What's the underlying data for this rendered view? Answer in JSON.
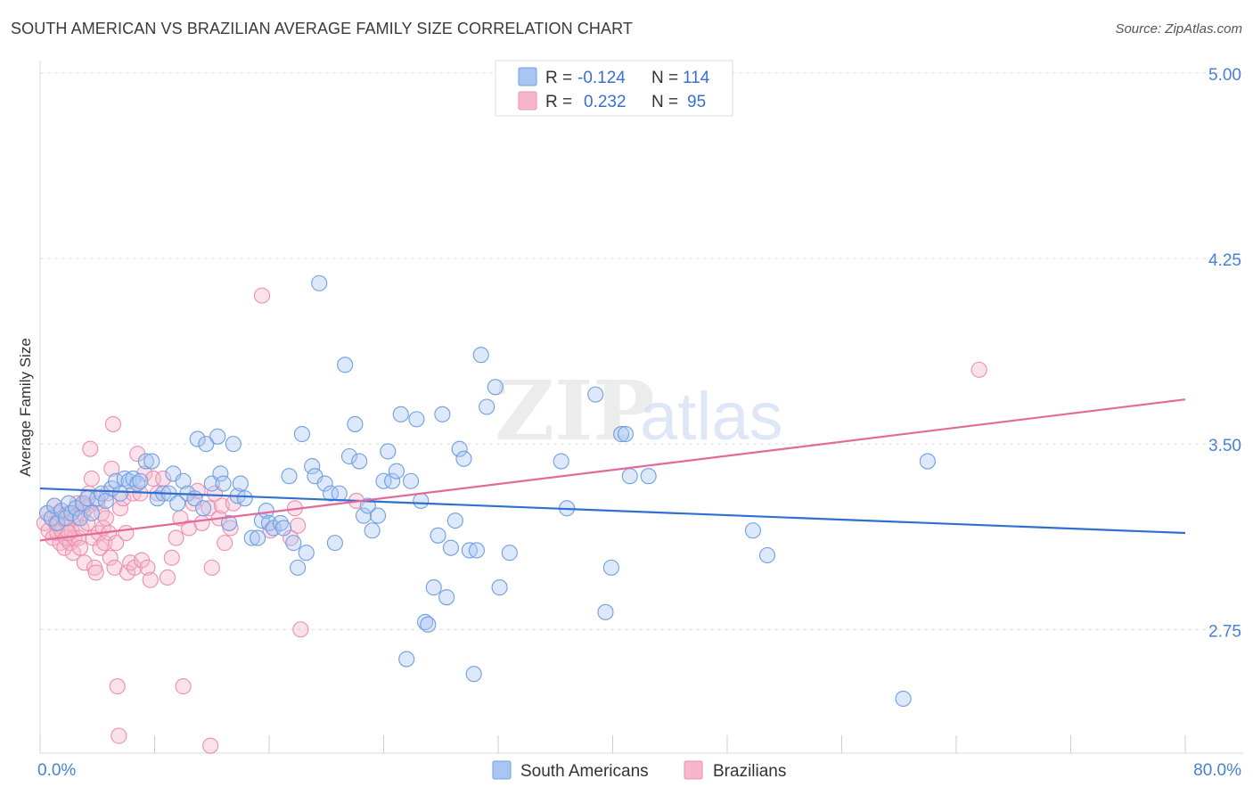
{
  "title": "SOUTH AMERICAN VS BRAZILIAN AVERAGE FAMILY SIZE CORRELATION CHART",
  "source": "Source: ZipAtlas.com",
  "watermark": {
    "zip": "ZIP",
    "atlas": "atlas"
  },
  "colors": {
    "blue_fill": "#a9c6f2",
    "blue_stroke": "#6f9fe0",
    "blue_line": "#2f6fd0",
    "pink_fill": "#f6b7cb",
    "pink_stroke": "#ec8fae",
    "pink_line": "#e36a97",
    "tick_text": "#4a7fd4",
    "grid": "#dddddd"
  },
  "legend_top": {
    "rows": [
      {
        "r_label": "R =",
        "r_value": "-0.124",
        "n_label": "N =",
        "n_value": "114"
      },
      {
        "r_label": "R =",
        "r_value": "0.232",
        "n_label": "N =",
        "n_value": "95"
      }
    ]
  },
  "chart_data": {
    "type": "scatter",
    "title": "SOUTH AMERICAN VS BRAZILIAN AVERAGE FAMILY SIZE CORRELATION CHART",
    "xlabel": "",
    "ylabel": "Average Family Size",
    "xlim": [
      0,
      80
    ],
    "ylim": [
      2.25,
      5.05
    ],
    "x_tick_labels": [
      "0.0%",
      "80.0%"
    ],
    "y_ticks": [
      2.75,
      3.5,
      4.25,
      5.0
    ],
    "y_tick_labels": [
      "2.75",
      "3.50",
      "4.25",
      "5.00"
    ],
    "grid": "horizontal dashed",
    "legend_placement": "bottom-center",
    "series": [
      {
        "name": "South Americans",
        "r": -0.124,
        "n": 114,
        "trend": [
          [
            0,
            3.32
          ],
          [
            80,
            3.14
          ]
        ],
        "points": [
          [
            0.5,
            3.22
          ],
          [
            0.8,
            3.2
          ],
          [
            1.0,
            3.25
          ],
          [
            1.2,
            3.18
          ],
          [
            1.5,
            3.23
          ],
          [
            1.8,
            3.2
          ],
          [
            2.0,
            3.26
          ],
          [
            2.2,
            3.22
          ],
          [
            2.5,
            3.24
          ],
          [
            2.8,
            3.2
          ],
          [
            3.0,
            3.26
          ],
          [
            3.3,
            3.28
          ],
          [
            3.6,
            3.22
          ],
          [
            4.0,
            3.28
          ],
          [
            4.3,
            3.3
          ],
          [
            4.6,
            3.27
          ],
          [
            5.0,
            3.32
          ],
          [
            5.3,
            3.35
          ],
          [
            5.6,
            3.3
          ],
          [
            5.9,
            3.36
          ],
          [
            6.2,
            3.35
          ],
          [
            6.5,
            3.36
          ],
          [
            6.8,
            3.34
          ],
          [
            7.0,
            3.35
          ],
          [
            7.4,
            3.43
          ],
          [
            7.8,
            3.43
          ],
          [
            8.2,
            3.28
          ],
          [
            8.6,
            3.3
          ],
          [
            9.0,
            3.3
          ],
          [
            9.3,
            3.38
          ],
          [
            9.6,
            3.26
          ],
          [
            10.0,
            3.35
          ],
          [
            10.3,
            3.3
          ],
          [
            10.8,
            3.28
          ],
          [
            11.0,
            3.52
          ],
          [
            11.4,
            3.24
          ],
          [
            11.6,
            3.5
          ],
          [
            12.0,
            3.34
          ],
          [
            12.4,
            3.53
          ],
          [
            12.6,
            3.38
          ],
          [
            12.8,
            3.34
          ],
          [
            13.2,
            3.18
          ],
          [
            13.5,
            3.5
          ],
          [
            13.8,
            3.29
          ],
          [
            14.0,
            3.34
          ],
          [
            14.3,
            3.28
          ],
          [
            14.8,
            3.12
          ],
          [
            15.2,
            3.12
          ],
          [
            15.5,
            3.19
          ],
          [
            15.8,
            3.23
          ],
          [
            16.0,
            3.18
          ],
          [
            16.3,
            3.16
          ],
          [
            16.8,
            3.18
          ],
          [
            17.0,
            3.16
          ],
          [
            17.4,
            3.37
          ],
          [
            17.7,
            3.1
          ],
          [
            18.0,
            3.0
          ],
          [
            18.3,
            3.54
          ],
          [
            18.6,
            3.06
          ],
          [
            19.0,
            3.41
          ],
          [
            19.2,
            3.37
          ],
          [
            19.5,
            4.15
          ],
          [
            19.9,
            3.34
          ],
          [
            20.3,
            3.3
          ],
          [
            20.6,
            3.1
          ],
          [
            20.9,
            3.3
          ],
          [
            21.3,
            3.82
          ],
          [
            21.6,
            3.45
          ],
          [
            22.0,
            3.58
          ],
          [
            22.3,
            3.43
          ],
          [
            22.6,
            3.21
          ],
          [
            22.9,
            3.25
          ],
          [
            23.2,
            3.15
          ],
          [
            23.6,
            3.21
          ],
          [
            24.0,
            3.35
          ],
          [
            24.3,
            3.47
          ],
          [
            24.6,
            3.35
          ],
          [
            24.9,
            3.39
          ],
          [
            25.2,
            3.62
          ],
          [
            25.6,
            2.63
          ],
          [
            25.9,
            3.35
          ],
          [
            26.3,
            3.6
          ],
          [
            26.6,
            3.27
          ],
          [
            26.9,
            2.78
          ],
          [
            27.1,
            2.77
          ],
          [
            27.5,
            2.92
          ],
          [
            27.8,
            3.13
          ],
          [
            28.1,
            3.62
          ],
          [
            28.4,
            2.88
          ],
          [
            28.7,
            3.08
          ],
          [
            29.0,
            3.19
          ],
          [
            29.3,
            3.48
          ],
          [
            29.6,
            3.44
          ],
          [
            30.0,
            3.07
          ],
          [
            30.3,
            2.57
          ],
          [
            30.5,
            3.07
          ],
          [
            30.8,
            3.86
          ],
          [
            31.2,
            3.65
          ],
          [
            31.8,
            3.73
          ],
          [
            32.1,
            2.92
          ],
          [
            32.8,
            3.06
          ],
          [
            36.4,
            3.43
          ],
          [
            36.8,
            3.24
          ],
          [
            38.8,
            3.7
          ],
          [
            39.5,
            2.82
          ],
          [
            39.9,
            3.0
          ],
          [
            40.6,
            3.54
          ],
          [
            40.9,
            3.54
          ],
          [
            41.2,
            3.37
          ],
          [
            42.5,
            3.37
          ],
          [
            49.8,
            3.15
          ],
          [
            50.8,
            3.05
          ],
          [
            60.3,
            2.47
          ],
          [
            62.0,
            3.43
          ]
        ]
      },
      {
        "name": "Brazilians",
        "r": 0.232,
        "n": 95,
        "trend": [
          [
            0,
            3.11
          ],
          [
            80,
            3.68
          ]
        ],
        "points": [
          [
            0.3,
            3.18
          ],
          [
            0.5,
            3.22
          ],
          [
            0.6,
            3.15
          ],
          [
            0.8,
            3.2
          ],
          [
            0.9,
            3.12
          ],
          [
            1.0,
            3.25
          ],
          [
            1.1,
            3.18
          ],
          [
            1.2,
            3.14
          ],
          [
            1.3,
            3.22
          ],
          [
            1.4,
            3.1
          ],
          [
            1.5,
            3.15
          ],
          [
            1.6,
            3.2
          ],
          [
            1.7,
            3.08
          ],
          [
            1.8,
            3.12
          ],
          [
            1.9,
            3.18
          ],
          [
            2.0,
            3.22
          ],
          [
            2.1,
            3.1
          ],
          [
            2.2,
            3.15
          ],
          [
            2.3,
            3.06
          ],
          [
            2.4,
            3.12
          ],
          [
            2.5,
            3.2
          ],
          [
            2.6,
            3.26
          ],
          [
            2.7,
            3.12
          ],
          [
            2.8,
            3.08
          ],
          [
            2.9,
            3.16
          ],
          [
            3.0,
            3.22
          ],
          [
            3.1,
            3.02
          ],
          [
            3.2,
            3.24
          ],
          [
            3.3,
            3.18
          ],
          [
            3.4,
            3.3
          ],
          [
            3.5,
            3.48
          ],
          [
            3.6,
            3.36
          ],
          [
            3.7,
            3.12
          ],
          [
            3.8,
            3.0
          ],
          [
            3.9,
            2.98
          ],
          [
            4.0,
            3.26
          ],
          [
            4.1,
            3.14
          ],
          [
            4.2,
            3.08
          ],
          [
            4.3,
            3.22
          ],
          [
            4.4,
            3.16
          ],
          [
            4.5,
            3.1
          ],
          [
            4.6,
            3.2
          ],
          [
            4.7,
            3.3
          ],
          [
            4.8,
            3.14
          ],
          [
            4.9,
            3.04
          ],
          [
            5.0,
            3.4
          ],
          [
            5.1,
            3.58
          ],
          [
            5.2,
            3.0
          ],
          [
            5.3,
            3.1
          ],
          [
            5.4,
            2.52
          ],
          [
            5.5,
            2.32
          ],
          [
            5.6,
            3.24
          ],
          [
            5.8,
            3.28
          ],
          [
            6.0,
            3.14
          ],
          [
            6.1,
            2.98
          ],
          [
            6.3,
            3.02
          ],
          [
            6.5,
            3.3
          ],
          [
            6.6,
            3.0
          ],
          [
            6.8,
            3.46
          ],
          [
            7.0,
            3.3
          ],
          [
            7.1,
            3.03
          ],
          [
            7.3,
            3.38
          ],
          [
            7.5,
            3.0
          ],
          [
            7.7,
            2.95
          ],
          [
            7.9,
            3.36
          ],
          [
            8.2,
            3.3
          ],
          [
            8.6,
            3.36
          ],
          [
            8.9,
            2.96
          ],
          [
            9.2,
            3.04
          ],
          [
            9.5,
            3.12
          ],
          [
            9.8,
            3.2
          ],
          [
            10.0,
            2.52
          ],
          [
            10.4,
            3.16
          ],
          [
            10.7,
            3.26
          ],
          [
            11.0,
            3.31
          ],
          [
            11.3,
            3.18
          ],
          [
            11.8,
            3.24
          ],
          [
            12.0,
            3.0
          ],
          [
            12.2,
            3.3
          ],
          [
            12.5,
            3.2
          ],
          [
            12.7,
            3.25
          ],
          [
            12.9,
            3.1
          ],
          [
            13.3,
            3.16
          ],
          [
            13.5,
            3.26
          ],
          [
            15.5,
            4.1
          ],
          [
            16.1,
            3.15
          ],
          [
            17.5,
            3.12
          ],
          [
            17.8,
            3.24
          ],
          [
            18.0,
            3.17
          ],
          [
            18.2,
            2.75
          ],
          [
            11.9,
            2.28
          ],
          [
            22.1,
            3.27
          ],
          [
            65.6,
            3.8
          ],
          [
            2.0,
            3.14
          ],
          [
            3.0,
            3.25
          ]
        ]
      }
    ]
  }
}
